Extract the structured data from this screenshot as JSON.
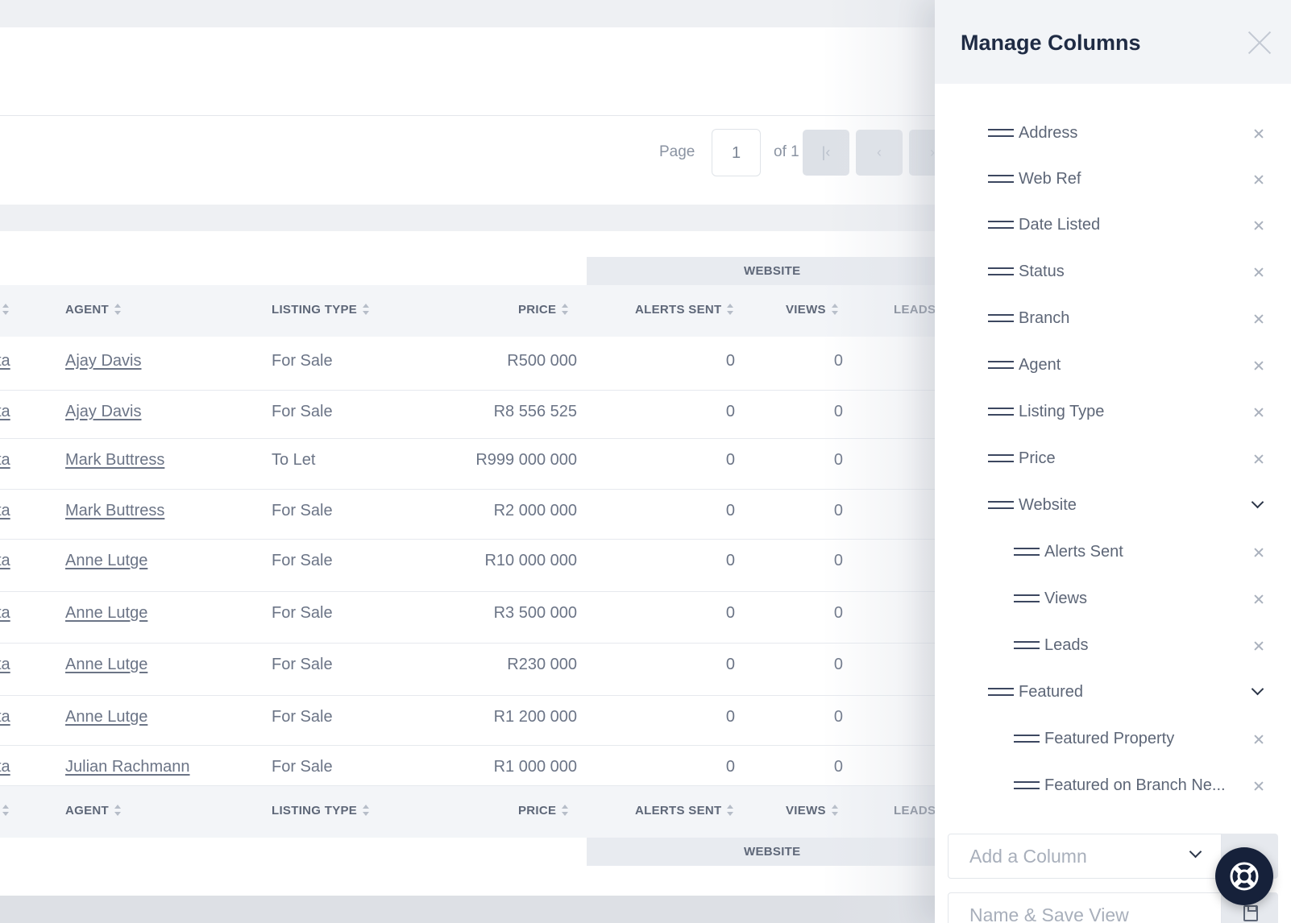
{
  "pagination": {
    "page_label": "Page",
    "current_page": "1",
    "of_label": "of 1",
    "first_icon": "chevron-first-icon",
    "prev_icon": "chevron-left-icon",
    "first_glyph": "|‹",
    "prev_glyph": "‹",
    "next_glyph": "›"
  },
  "table": {
    "group_header": "WEBSITE",
    "columns": {
      "partial": "",
      "agent": "AGENT",
      "listing_type": "LISTING TYPE",
      "price": "PRICE",
      "alerts_sent": "ALERTS SENT",
      "views": "VIEWS",
      "leads": "LEADS"
    },
    "rows": [
      {
        "branch": "ta",
        "agent": "Ajay Davis",
        "listing_type": "For Sale",
        "price": "R500 000",
        "alerts_sent": "0",
        "views": "0"
      },
      {
        "branch": "ta",
        "agent": "Ajay Davis",
        "listing_type": "For Sale",
        "price": "R8 556 525",
        "alerts_sent": "0",
        "views": "0"
      },
      {
        "branch": "ta",
        "agent": "Mark Buttress",
        "listing_type": "To Let",
        "price": "R999 000 000",
        "alerts_sent": "0",
        "views": "0"
      },
      {
        "branch": "ta",
        "agent": "Mark Buttress",
        "listing_type": "For Sale",
        "price": "R2 000 000",
        "alerts_sent": "0",
        "views": "0"
      },
      {
        "branch": "ta",
        "agent": "Anne Lutge",
        "listing_type": "For Sale",
        "price": "R10 000 000",
        "alerts_sent": "0",
        "views": "0"
      },
      {
        "branch": "ta",
        "agent": "Anne Lutge",
        "listing_type": "For Sale",
        "price": "R3 500 000",
        "alerts_sent": "0",
        "views": "0"
      },
      {
        "branch": "ta",
        "agent": "Anne Lutge",
        "listing_type": "For Sale",
        "price": "R230 000",
        "alerts_sent": "0",
        "views": "0"
      },
      {
        "branch": "ta",
        "agent": "Anne Lutge",
        "listing_type": "For Sale",
        "price": "R1 200 000",
        "alerts_sent": "0",
        "views": "0"
      },
      {
        "branch": "ta",
        "agent": "Julian Rachmann",
        "listing_type": "For Sale",
        "price": "R1 000 000",
        "alerts_sent": "0",
        "views": "0"
      }
    ]
  },
  "drawer": {
    "title": "Manage Columns",
    "close_icon": "close-icon",
    "columns": [
      {
        "label": "Address",
        "level": 0,
        "type": "remove"
      },
      {
        "label": "Web Ref",
        "level": 0,
        "type": "remove"
      },
      {
        "label": "Date Listed",
        "level": 0,
        "type": "remove"
      },
      {
        "label": "Status",
        "level": 0,
        "type": "remove"
      },
      {
        "label": "Branch",
        "level": 0,
        "type": "remove"
      },
      {
        "label": "Agent",
        "level": 0,
        "type": "remove"
      },
      {
        "label": "Listing Type",
        "level": 0,
        "type": "remove"
      },
      {
        "label": "Price",
        "level": 0,
        "type": "remove"
      },
      {
        "label": "Website",
        "level": 0,
        "type": "group"
      },
      {
        "label": "Alerts Sent",
        "level": 1,
        "type": "remove"
      },
      {
        "label": "Views",
        "level": 1,
        "type": "remove"
      },
      {
        "label": "Leads",
        "level": 1,
        "type": "remove"
      },
      {
        "label": "Featured",
        "level": 0,
        "type": "group"
      },
      {
        "label": "Featured Property",
        "level": 1,
        "type": "remove"
      },
      {
        "label": "Featured on Branch Ne...",
        "level": 1,
        "type": "remove"
      }
    ],
    "add_column_placeholder": "Add a Column",
    "save_view_placeholder": "Name & Save View",
    "save_icon": "save-icon",
    "help_icon": "lifebuoy-icon"
  },
  "colors": {
    "title": "#1f2b44",
    "text": "#5d6677",
    "header_bg": "#f3f5f8",
    "group_bg": "#e8ebf0",
    "fab": "#16213a"
  }
}
